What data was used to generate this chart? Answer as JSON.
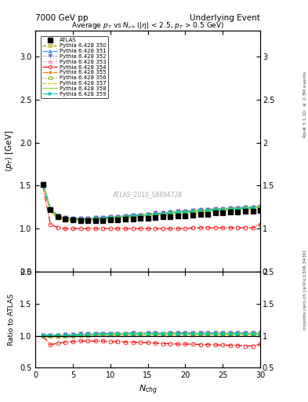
{
  "title_left": "7000 GeV pp",
  "title_right": "Underlying Event",
  "plot_title": "Average $p_T$ vs $N_{ch}$ ($|\\eta|$ < 2.5, $p_T$ > 0.5 GeV)",
  "ylabel_main": "$\\langle p_T \\rangle$ [GeV]",
  "ylabel_ratio": "Ratio to ATLAS",
  "xlabel": "$N_{chg}$",
  "right_label_top": "Rivet 3.1.10, $\\geq$ 2.5M events",
  "right_label_bottom": "mcplots.cern.ch [arXiv:1306.3436]",
  "watermark": "ATLAS_2010_S8894728",
  "xlim": [
    0,
    30
  ],
  "ylim_main": [
    0.5,
    3.3
  ],
  "ylim_ratio": [
    0.5,
    2.0
  ],
  "yticks_main": [
    0.5,
    1.0,
    1.5,
    2.0,
    2.5,
    3.0
  ],
  "yticks_ratio": [
    0.5,
    1.0,
    1.5,
    2.0
  ],
  "atlas_nch": [
    1,
    2,
    3,
    4,
    5,
    6,
    7,
    8,
    9,
    10,
    11,
    12,
    13,
    14,
    15,
    16,
    17,
    18,
    19,
    20,
    21,
    22,
    23,
    24,
    25,
    26,
    27,
    28,
    29,
    30
  ],
  "atlas_pt": [
    1.51,
    1.22,
    1.14,
    1.11,
    1.1,
    1.09,
    1.09,
    1.09,
    1.09,
    1.1,
    1.1,
    1.11,
    1.11,
    1.12,
    1.12,
    1.13,
    1.14,
    1.14,
    1.15,
    1.15,
    1.16,
    1.17,
    1.17,
    1.18,
    1.18,
    1.19,
    1.19,
    1.2,
    1.2,
    1.21
  ],
  "series": [
    {
      "label": "Pythia 6.428 350",
      "color": "#aaaa00",
      "linestyle": "--",
      "marker": "s",
      "markerfacecolor": "none",
      "pt": [
        1.51,
        1.21,
        1.13,
        1.11,
        1.1,
        1.1,
        1.1,
        1.11,
        1.11,
        1.12,
        1.13,
        1.14,
        1.14,
        1.15,
        1.16,
        1.17,
        1.17,
        1.18,
        1.19,
        1.19,
        1.2,
        1.2,
        1.21,
        1.22,
        1.22,
        1.23,
        1.23,
        1.24,
        1.24,
        1.25
      ],
      "fill": true,
      "fill_color": "#cccc00",
      "fill_alpha": 0.4
    },
    {
      "label": "Pythia 6.428 351",
      "color": "#3399ff",
      "linestyle": "-.",
      "marker": "^",
      "markerfacecolor": "#3399ff",
      "pt": [
        1.52,
        1.23,
        1.15,
        1.13,
        1.12,
        1.12,
        1.12,
        1.13,
        1.13,
        1.14,
        1.14,
        1.15,
        1.16,
        1.16,
        1.17,
        1.18,
        1.18,
        1.19,
        1.2,
        1.2,
        1.21,
        1.22,
        1.22,
        1.23,
        1.23,
        1.24,
        1.24,
        1.25,
        1.25,
        1.26
      ]
    },
    {
      "label": "Pythia 6.428 352",
      "color": "#6666cc",
      "linestyle": ":",
      "marker": "v",
      "markerfacecolor": "#6666cc",
      "pt": [
        1.52,
        1.23,
        1.15,
        1.13,
        1.12,
        1.12,
        1.12,
        1.13,
        1.13,
        1.14,
        1.14,
        1.15,
        1.16,
        1.16,
        1.17,
        1.18,
        1.18,
        1.19,
        1.2,
        1.2,
        1.21,
        1.22,
        1.22,
        1.23,
        1.23,
        1.24,
        1.24,
        1.25,
        1.25,
        1.26
      ]
    },
    {
      "label": "Pythia 6.428 353",
      "color": "#ff66aa",
      "linestyle": ":",
      "marker": "^",
      "markerfacecolor": "none",
      "pt": [
        1.52,
        1.23,
        1.14,
        1.12,
        1.11,
        1.11,
        1.11,
        1.12,
        1.12,
        1.13,
        1.13,
        1.14,
        1.15,
        1.15,
        1.16,
        1.17,
        1.17,
        1.18,
        1.19,
        1.19,
        1.2,
        1.21,
        1.21,
        1.22,
        1.22,
        1.23,
        1.23,
        1.24,
        1.24,
        1.25
      ]
    },
    {
      "label": "Pythia 6.428 354",
      "color": "#ff0000",
      "linestyle": "-.",
      "marker": "o",
      "markerfacecolor": "none",
      "pt": [
        1.5,
        1.05,
        1.01,
        1.0,
        1.0,
        1.0,
        1.0,
        1.0,
        1.0,
        1.0,
        1.0,
        1.0,
        1.0,
        1.0,
        1.0,
        1.0,
        1.0,
        1.0,
        1.0,
        1.0,
        1.01,
        1.01,
        1.01,
        1.01,
        1.01,
        1.01,
        1.01,
        1.01,
        1.01,
        1.05
      ]
    },
    {
      "label": "Pythia 6.428 355",
      "color": "#ff8800",
      "linestyle": "-.",
      "marker": "*",
      "markerfacecolor": "#ff8800",
      "pt": [
        1.52,
        1.22,
        1.14,
        1.12,
        1.11,
        1.11,
        1.11,
        1.12,
        1.12,
        1.13,
        1.13,
        1.14,
        1.15,
        1.15,
        1.16,
        1.17,
        1.17,
        1.18,
        1.19,
        1.19,
        1.2,
        1.21,
        1.21,
        1.22,
        1.22,
        1.23,
        1.23,
        1.24,
        1.24,
        1.25
      ]
    },
    {
      "label": "Pythia 6.428 356",
      "color": "#88aa00",
      "linestyle": ":",
      "marker": "s",
      "markerfacecolor": "none",
      "pt": [
        1.51,
        1.21,
        1.13,
        1.11,
        1.1,
        1.1,
        1.1,
        1.11,
        1.11,
        1.12,
        1.13,
        1.14,
        1.14,
        1.15,
        1.16,
        1.17,
        1.17,
        1.18,
        1.19,
        1.19,
        1.2,
        1.2,
        1.21,
        1.22,
        1.22,
        1.23,
        1.23,
        1.24,
        1.24,
        1.25
      ]
    },
    {
      "label": "Pythia 6.428 357",
      "color": "#ddcc00",
      "linestyle": "--",
      "marker": "None",
      "markerfacecolor": "#ddcc00",
      "pt": [
        1.51,
        1.22,
        1.14,
        1.11,
        1.1,
        1.1,
        1.1,
        1.11,
        1.11,
        1.12,
        1.13,
        1.14,
        1.14,
        1.15,
        1.16,
        1.17,
        1.17,
        1.18,
        1.19,
        1.19,
        1.2,
        1.2,
        1.21,
        1.22,
        1.22,
        1.23,
        1.23,
        1.24,
        1.24,
        1.25
      ]
    },
    {
      "label": "Pythia 6.428 358",
      "color": "#aacc44",
      "linestyle": "-",
      "marker": "None",
      "markerfacecolor": "#aacc44",
      "pt": [
        1.51,
        1.22,
        1.14,
        1.11,
        1.1,
        1.1,
        1.1,
        1.11,
        1.11,
        1.12,
        1.13,
        1.14,
        1.14,
        1.15,
        1.16,
        1.17,
        1.17,
        1.18,
        1.19,
        1.19,
        1.2,
        1.2,
        1.21,
        1.22,
        1.22,
        1.23,
        1.23,
        1.24,
        1.24,
        1.25
      ]
    },
    {
      "label": "Pythia 6.428 359",
      "color": "#00ccaa",
      "linestyle": "-.",
      "marker": ">",
      "markerfacecolor": "#00ccaa",
      "pt": [
        1.52,
        1.23,
        1.15,
        1.12,
        1.11,
        1.11,
        1.11,
        1.12,
        1.12,
        1.13,
        1.13,
        1.14,
        1.15,
        1.15,
        1.16,
        1.17,
        1.17,
        1.18,
        1.19,
        1.19,
        1.2,
        1.21,
        1.21,
        1.22,
        1.22,
        1.23,
        1.23,
        1.24,
        1.24,
        1.25
      ]
    }
  ]
}
